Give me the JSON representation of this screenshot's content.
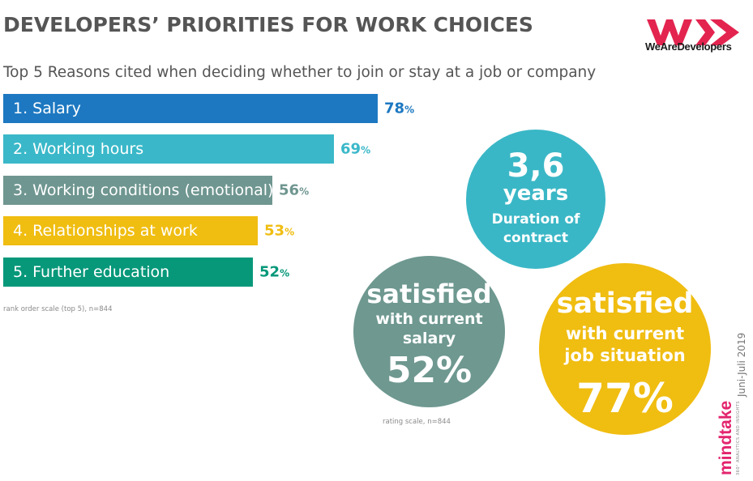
{
  "title": "DEVELOPERS’ PRIORITIES FOR WORK CHOICES",
  "subtitle": "Top 5 Reasons cited when deciding whether to join or stay at a job or company",
  "logo": {
    "text": "WeAreDevelopers",
    "color": "#e3244f"
  },
  "chart_data": [
    {
      "type": "bar",
      "orientation": "horizontal",
      "categories": [
        "1. Salary",
        "2. Working hours",
        "3. Working conditions (emotional)",
        "4. Relationships at work",
        "5. Further education"
      ],
      "values": [
        78,
        69,
        56,
        53,
        52
      ],
      "colors": [
        "#1d78c1",
        "#3ab8c9",
        "#6f9690",
        "#f0bd11",
        "#07987a"
      ],
      "value_suffix": "%",
      "note": "rank order scale (top 5), n=844"
    }
  ],
  "circles": {
    "years": {
      "value": "3,6",
      "unit": "years",
      "line1": "Duration of",
      "line2": "contract",
      "color": "#3ab7c6"
    },
    "salary": {
      "line1": "satisfied",
      "line2": "with current",
      "line3": "salary",
      "value": "52%",
      "color": "#6e9890"
    },
    "job": {
      "line1": "satisfied",
      "line2": "with current",
      "line3": "job situation",
      "value": "77%",
      "color": "#f0bd11"
    }
  },
  "rating_note": "rating scale, n=844",
  "date_text": "Juni-Juli 2019",
  "brand": {
    "name": "mindtake",
    "tagline": "360° ANALYTICS AND INSIGHTS"
  }
}
